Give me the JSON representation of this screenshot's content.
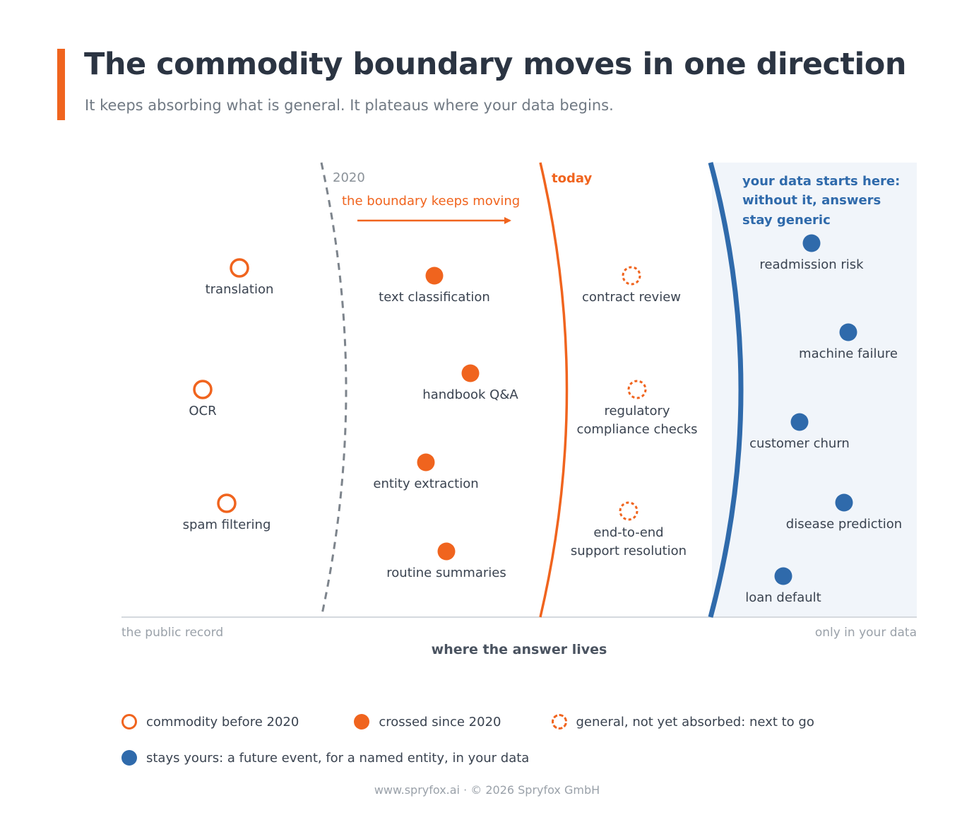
{
  "title": "The commodity boundary moves in one direction",
  "subtitle": "It keeps absorbing what is general. It plateaus where your data begins.",
  "colors": {
    "accent": "#f0641e",
    "blue": "#2f6aab",
    "gray": "#8a9198",
    "title": "#2b3442",
    "zone": "#f1f5fa"
  },
  "boundaries": {
    "b2020": "2020",
    "today": "today",
    "moving": "the boundary keeps moving",
    "data_line1": "your data starts here:",
    "data_line2": "without it, answers",
    "data_line3": "stay generic"
  },
  "axis": {
    "left_end": "the public record",
    "right_end": "only in your data",
    "title": "where the answer lives"
  },
  "items": {
    "commodity": [
      {
        "lines": [
          "translation"
        ]
      },
      {
        "lines": [
          "OCR"
        ]
      },
      {
        "lines": [
          "spam filtering"
        ]
      }
    ],
    "crossed": [
      {
        "lines": [
          "text classification"
        ]
      },
      {
        "lines": [
          "handbook Q&A"
        ]
      },
      {
        "lines": [
          "entity extraction"
        ]
      },
      {
        "lines": [
          "routine summaries"
        ]
      }
    ],
    "next": [
      {
        "lines": [
          "contract review"
        ]
      },
      {
        "lines": [
          "regulatory",
          "compliance checks"
        ]
      },
      {
        "lines": [
          "end-to-end",
          "support resolution"
        ]
      }
    ],
    "yours": [
      {
        "lines": [
          "readmission risk"
        ]
      },
      {
        "lines": [
          "machine failure"
        ]
      },
      {
        "lines": [
          "customer churn"
        ]
      },
      {
        "lines": [
          "disease prediction"
        ]
      },
      {
        "lines": [
          "loan default"
        ]
      }
    ]
  },
  "legend": {
    "commodity": "commodity before 2020",
    "crossed": "crossed since 2020",
    "next": "general, not yet absorbed: next to go",
    "yours": "stays yours: a future event, for a named entity, in your data"
  },
  "footer": "www.spryfox.ai · © 2026 Spryfox GmbH"
}
